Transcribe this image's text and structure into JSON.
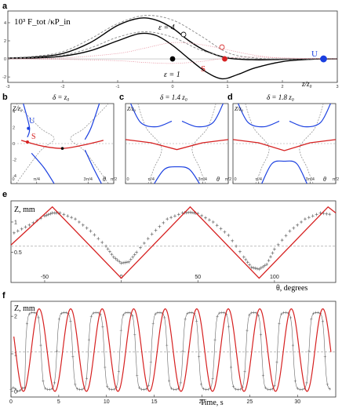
{
  "chart_data": [
    {
      "panel": "a",
      "type": "line",
      "ylabel": "10³ F_tot /κP_in",
      "xlabel": "z/z₀",
      "xlim": [
        -3,
        3
      ],
      "ylim": [
        -2.6,
        5.3
      ],
      "x_ticks": [
        -3,
        -2,
        -1,
        0,
        1,
        2,
        3
      ],
      "y_ticks": [
        -2,
        0,
        2,
        4
      ],
      "annotations": [
        "ε = 4",
        "ε = 1",
        "S",
        "U"
      ],
      "series": [
        {
          "name": "ε = 4",
          "style": "solid black",
          "x": [
            -3,
            -2.5,
            -2,
            -1.5,
            -1,
            -0.6,
            -0.3,
            0,
            0.3,
            0.6,
            1,
            1.5,
            2,
            2.5,
            3
          ],
          "y": [
            0.1,
            0.2,
            0.6,
            1.8,
            3.7,
            4.5,
            4.3,
            3.4,
            2.0,
            0.9,
            0.1,
            -0.1,
            -0.05,
            0,
            0
          ]
        },
        {
          "name": "ε = 1",
          "style": "solid black",
          "x": [
            -3,
            -2.5,
            -2,
            -1.5,
            -1,
            -0.6,
            -0.3,
            0,
            0.3,
            0.6,
            0.9,
            1.2,
            1.5,
            2,
            2.5,
            3
          ],
          "y": [
            0.05,
            0.1,
            0.3,
            0.9,
            2.0,
            2.8,
            2.6,
            1.5,
            0,
            -1.4,
            -2.2,
            -1.7,
            -1.0,
            -0.3,
            -0.05,
            0
          ]
        },
        {
          "style": "dashed gray",
          "x": [
            -3,
            -2.5,
            -2,
            -1.5,
            -1,
            -0.5,
            0,
            0.5,
            1,
            1.5,
            2,
            2.5,
            3
          ],
          "y": [
            0.1,
            0.3,
            0.8,
            2.2,
            3.9,
            4.8,
            4.3,
            2.6,
            0.7,
            0.1,
            0,
            0,
            0
          ]
        },
        {
          "style": "dashed gray",
          "x": [
            -3,
            -2.5,
            -2,
            -1.5,
            -1,
            -0.5,
            0,
            0.5,
            1,
            1.5,
            2,
            2.5,
            3
          ],
          "y": [
            0.05,
            0.15,
            0.4,
            1.2,
            2.4,
            3.0,
            2.4,
            1.0,
            0.2,
            0,
            0,
            0,
            0
          ]
        },
        {
          "style": "dotted pink",
          "x": [
            -3,
            -2,
            -1,
            -0.5,
            0,
            0.5,
            1,
            1.5,
            2,
            3
          ],
          "y": [
            0,
            0.1,
            0.6,
            1.2,
            1.8,
            1.6,
            1.0,
            0.4,
            0.1,
            0
          ]
        },
        {
          "style": "dotted pink",
          "x": [
            -3,
            -2,
            -1,
            -0.5,
            0,
            0.5,
            1,
            1.5,
            2,
            3
          ],
          "y": [
            0,
            -0.05,
            -0.2,
            -0.4,
            -0.5,
            -0.3,
            0.1,
            0.2,
            0.1,
            0
          ]
        }
      ],
      "points": [
        {
          "label": "black-dot-1",
          "x": 0.0,
          "y": 0.0,
          "color": "#000000",
          "filled": true
        },
        {
          "label": "S",
          "x": 0.95,
          "y": 0.0,
          "color": "#d62020",
          "filled": true
        },
        {
          "label": "U",
          "x": 2.75,
          "y": 0.0,
          "color": "#1a3fe0",
          "filled": true
        },
        {
          "label": "open-black",
          "x": 0.2,
          "y": 2.7,
          "color": "#000000",
          "filled": false
        },
        {
          "label": "open-red",
          "x": 0.9,
          "y": 1.3,
          "color": "#d62020",
          "filled": false
        }
      ]
    },
    {
      "panel": "b",
      "type": "line",
      "title": "δ = z₀",
      "xlabel": "θ",
      "ylabel": "Z/z₀",
      "x_ticks": [
        "0",
        "π/4",
        "3π/4",
        "π/2"
      ],
      "y_ticks": [
        -4,
        -2,
        0,
        2,
        4
      ],
      "annotations": [
        "U",
        "S"
      ]
    },
    {
      "panel": "c",
      "type": "line",
      "title": "δ = 1.4 z₀",
      "xlabel": "θ",
      "ylabel": "Z/z₀",
      "x_ticks": [
        "0",
        "π/4",
        "3π/4",
        "π/2"
      ]
    },
    {
      "panel": "d",
      "type": "line",
      "title": "δ = 1.8 z₀",
      "xlabel": "θ",
      "ylabel": "Z/z₀",
      "x_ticks": [
        "0",
        "π/4",
        "3π/4",
        "π/2"
      ]
    },
    {
      "panel": "e",
      "type": "line",
      "xlabel": "θ, degrees",
      "ylabel": "Z, mm",
      "xlim": [
        -72,
        140
      ],
      "ylim": [
        0.0,
        1.35
      ],
      "x_ticks": [
        -50,
        0,
        50,
        100
      ],
      "y_ticks": [
        0.5,
        1
      ],
      "dashed_level": 0.6,
      "series": [
        {
          "style": "red solid",
          "x": [
            -72,
            -45,
            0,
            45,
            90,
            135,
            140
          ],
          "y": [
            0.62,
            1.25,
            0.07,
            1.25,
            0.07,
            1.25,
            1.15
          ]
        },
        {
          "style": "gray data with error bars",
          "x": [
            -70,
            -60,
            -50,
            -45,
            -40,
            -30,
            -20,
            -10,
            -5,
            0,
            5,
            10,
            20,
            30,
            40,
            45,
            50,
            60,
            70,
            80,
            85,
            90,
            95,
            100,
            110,
            120,
            130,
            138
          ],
          "y": [
            0.82,
            0.95,
            1.1,
            1.15,
            1.15,
            1.05,
            0.85,
            0.6,
            0.42,
            0.32,
            0.34,
            0.5,
            0.8,
            1.05,
            1.15,
            1.16,
            1.14,
            1.0,
            0.78,
            0.42,
            0.25,
            0.22,
            0.3,
            0.55,
            0.85,
            1.05,
            1.15,
            1.12
          ]
        }
      ]
    },
    {
      "panel": "f",
      "type": "line",
      "xlabel": "Time, s",
      "ylabel": "Z, mm",
      "xlim": [
        0,
        34
      ],
      "ylim": [
        -0.15,
        2.4
      ],
      "x_ticks": [
        0,
        5,
        10,
        15,
        20,
        25,
        30
      ],
      "y_ticks": [
        0,
        1,
        2
      ],
      "dashed_level": 1.05,
      "red_sine": {
        "amplitude_half": 1.1,
        "offset": 1.1,
        "period_s": 3.3,
        "phase_s": 1.3
      },
      "gray_data": {
        "low": 0.05,
        "high": 2.1,
        "period_s": 3.3,
        "phase_s": 1.5
      }
    }
  ],
  "labels": {
    "a": "a",
    "b": "b",
    "c": "c",
    "d": "d",
    "e": "e",
    "f": "f",
    "a_ylabel": "10³ F_tot /κP_in",
    "a_eps4": "ε = 4",
    "a_eps1": "ε = 1",
    "a_S": "S",
    "a_U": "U",
    "a_xlabel": "z/z₀",
    "b_title": "δ = z₀",
    "c_title": "δ = 1.4 z₀",
    "d_title": "δ = 1.8 z₀",
    "zz0": "Z/z₀",
    "theta": "θ",
    "b_U": "U",
    "b_S": "S",
    "e_ylabel": "Z, mm",
    "e_xlabel": "θ, degrees",
    "f_ylabel": "Z, mm",
    "f_xlabel": "Time, s"
  },
  "colors": {
    "red": "#d62020",
    "blue": "#1a3fe0",
    "gray": "#777777",
    "pink": "#e58b9a"
  }
}
